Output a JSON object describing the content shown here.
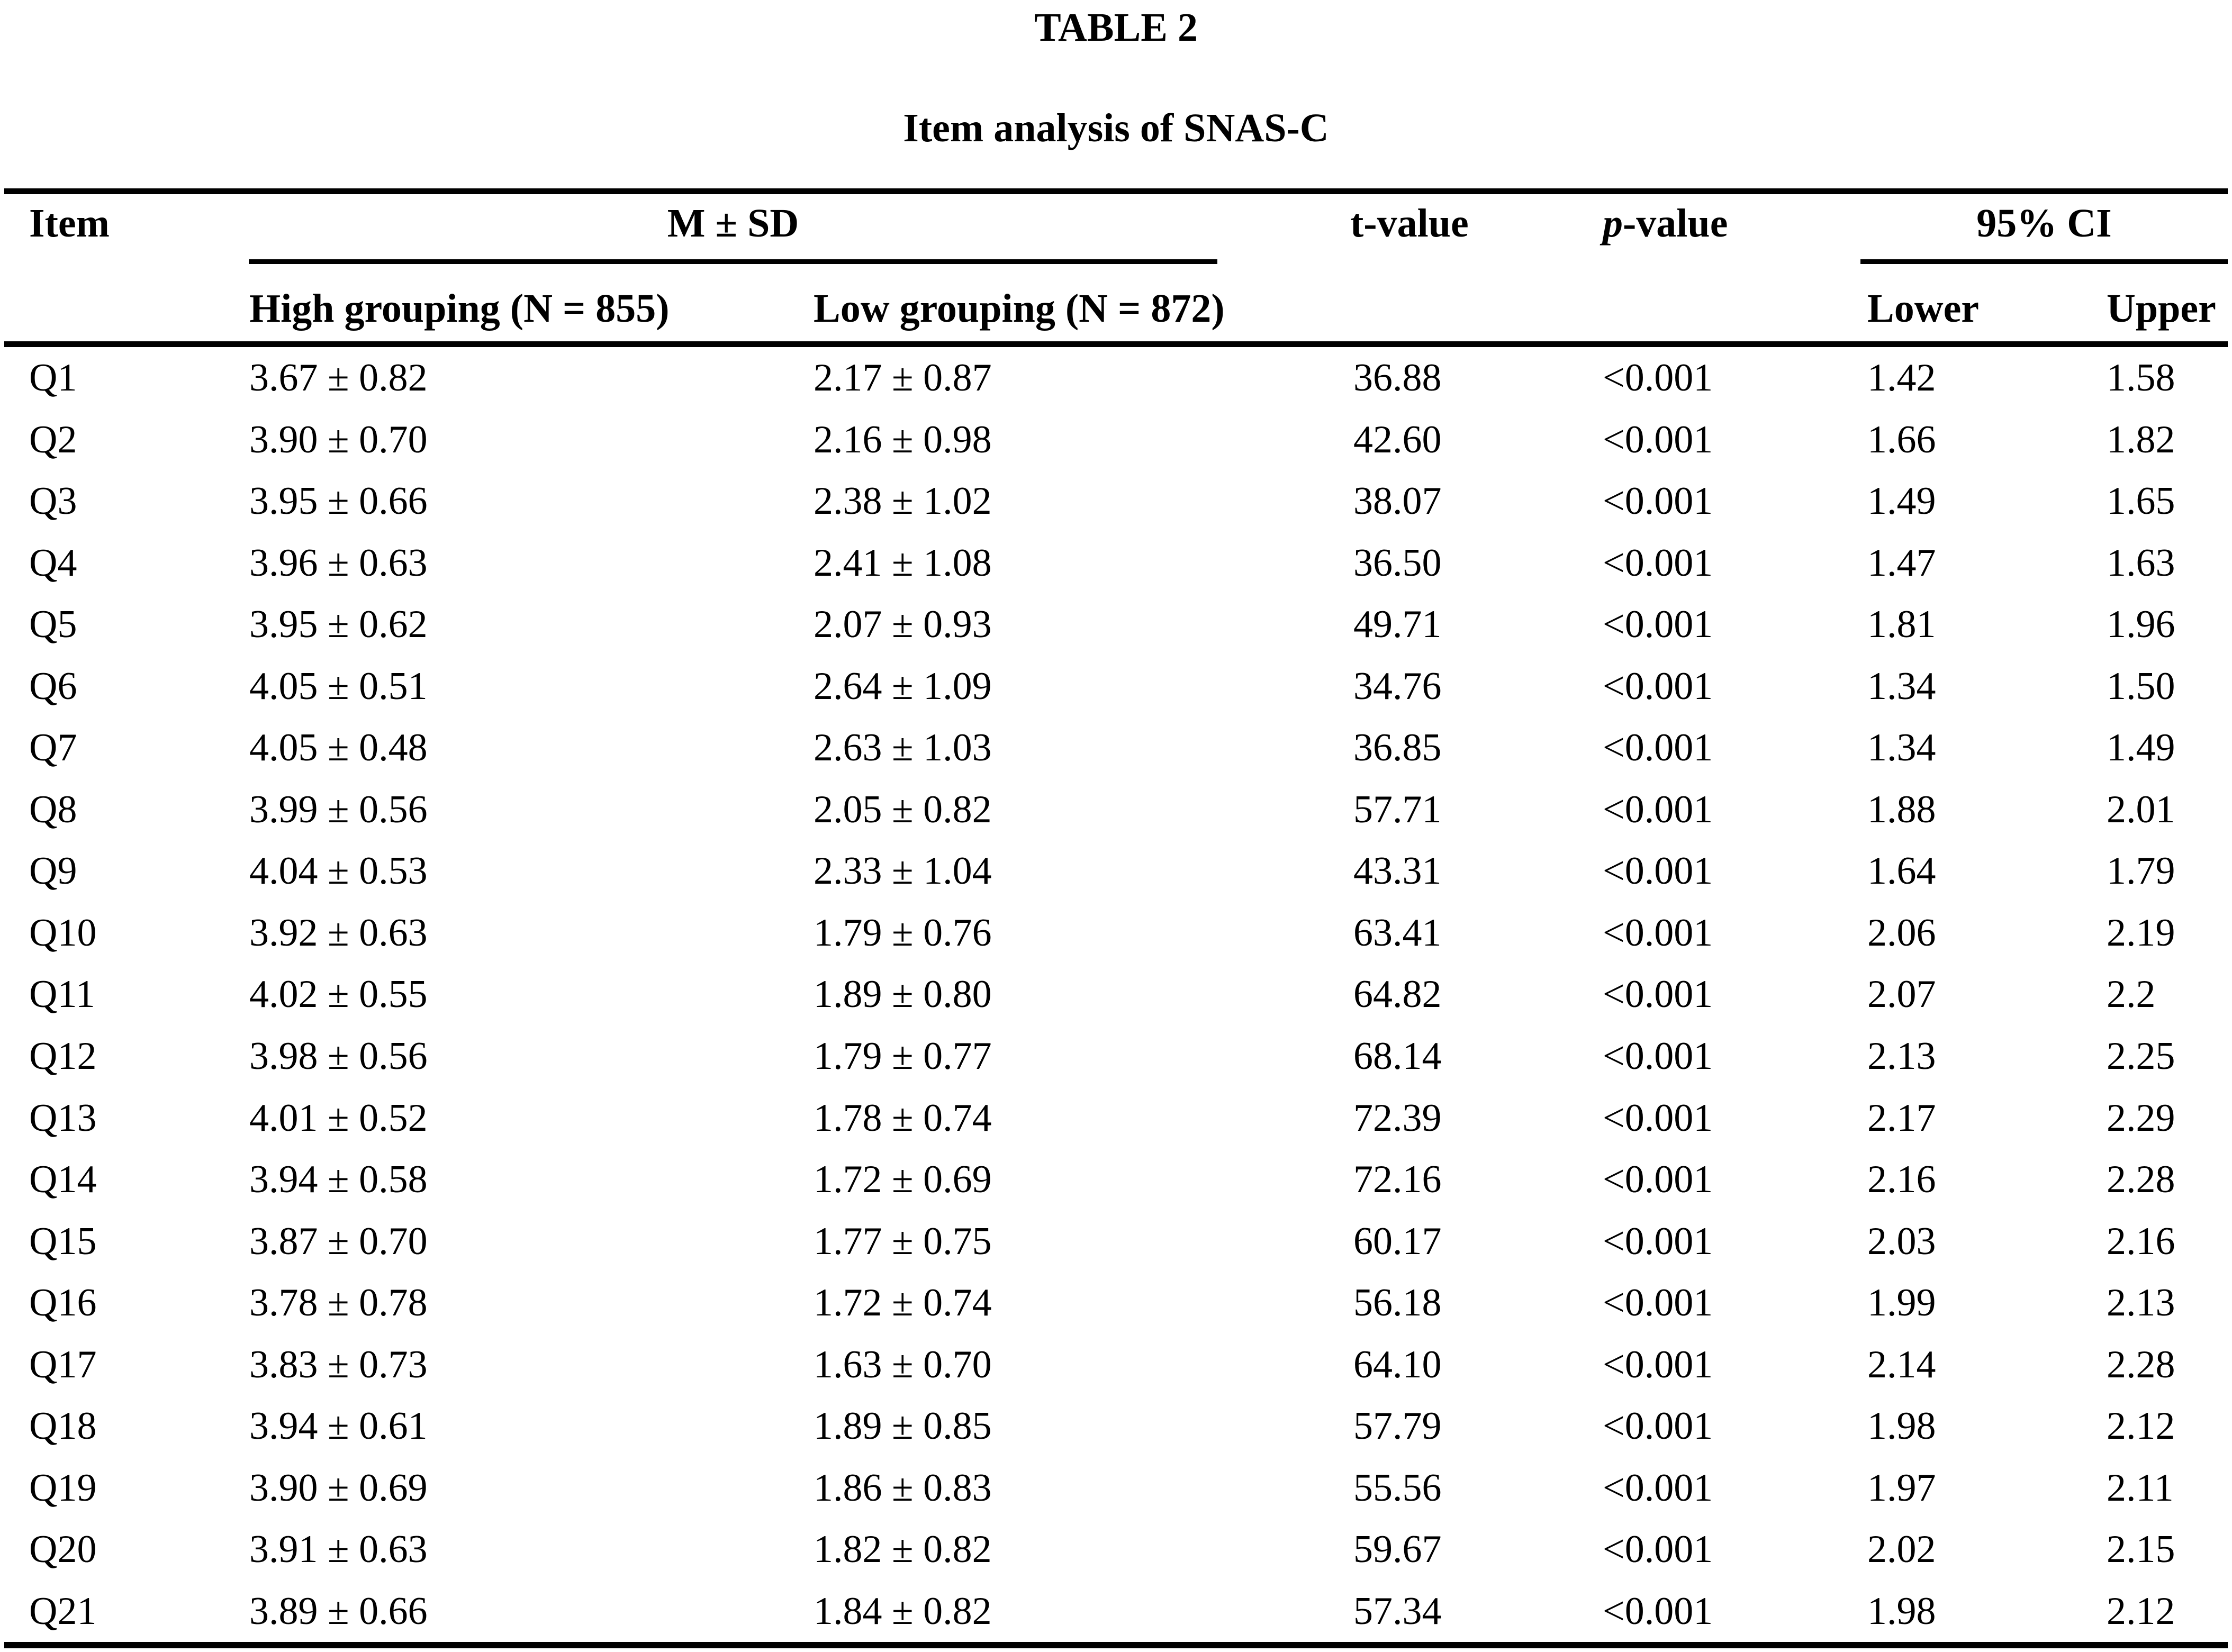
{
  "title": "TABLE 2",
  "subtitle": "Item analysis of SNAS-C",
  "colors": {
    "text": "#000000",
    "background": "#ffffff",
    "rule": "#000000"
  },
  "table": {
    "col_headers": {
      "item": "Item",
      "m_sd": "M ± SD",
      "t_value": "t-value",
      "p_value_italic": "p",
      "p_value_rest": "-value",
      "ci": "95% CI",
      "high_grouping": "High grouping (N = 855)",
      "low_grouping": "Low grouping (N = 872)",
      "lower": "Lower",
      "upper": "Upper"
    },
    "rows": [
      {
        "item": "Q1",
        "high": "3.67 ± 0.82",
        "low": "2.17 ± 0.87",
        "t": "36.88",
        "p": "<0.001",
        "lower": "1.42",
        "upper": "1.58"
      },
      {
        "item": "Q2",
        "high": "3.90 ± 0.70",
        "low": "2.16 ± 0.98",
        "t": "42.60",
        "p": "<0.001",
        "lower": "1.66",
        "upper": "1.82"
      },
      {
        "item": "Q3",
        "high": "3.95 ± 0.66",
        "low": "2.38 ± 1.02",
        "t": "38.07",
        "p": "<0.001",
        "lower": "1.49",
        "upper": "1.65"
      },
      {
        "item": "Q4",
        "high": "3.96 ± 0.63",
        "low": "2.41 ± 1.08",
        "t": "36.50",
        "p": "<0.001",
        "lower": "1.47",
        "upper": "1.63"
      },
      {
        "item": "Q5",
        "high": "3.95 ± 0.62",
        "low": "2.07 ± 0.93",
        "t": "49.71",
        "p": "<0.001",
        "lower": "1.81",
        "upper": "1.96"
      },
      {
        "item": "Q6",
        "high": "4.05 ± 0.51",
        "low": "2.64 ± 1.09",
        "t": "34.76",
        "p": "<0.001",
        "lower": "1.34",
        "upper": "1.50"
      },
      {
        "item": "Q7",
        "high": "4.05 ± 0.48",
        "low": "2.63 ± 1.03",
        "t": "36.85",
        "p": "<0.001",
        "lower": "1.34",
        "upper": "1.49"
      },
      {
        "item": "Q8",
        "high": "3.99 ± 0.56",
        "low": "2.05 ± 0.82",
        "t": "57.71",
        "p": "<0.001",
        "lower": "1.88",
        "upper": "2.01"
      },
      {
        "item": "Q9",
        "high": "4.04 ± 0.53",
        "low": "2.33 ± 1.04",
        "t": "43.31",
        "p": "<0.001",
        "lower": "1.64",
        "upper": "1.79"
      },
      {
        "item": "Q10",
        "high": "3.92 ± 0.63",
        "low": "1.79 ± 0.76",
        "t": "63.41",
        "p": "<0.001",
        "lower": "2.06",
        "upper": "2.19"
      },
      {
        "item": "Q11",
        "high": "4.02 ± 0.55",
        "low": "1.89 ± 0.80",
        "t": "64.82",
        "p": "<0.001",
        "lower": "2.07",
        "upper": "2.2"
      },
      {
        "item": "Q12",
        "high": "3.98 ± 0.56",
        "low": "1.79 ± 0.77",
        "t": "68.14",
        "p": "<0.001",
        "lower": "2.13",
        "upper": "2.25"
      },
      {
        "item": "Q13",
        "high": "4.01 ± 0.52",
        "low": "1.78 ± 0.74",
        "t": "72.39",
        "p": "<0.001",
        "lower": "2.17",
        "upper": "2.29"
      },
      {
        "item": "Q14",
        "high": "3.94 ± 0.58",
        "low": "1.72 ± 0.69",
        "t": "72.16",
        "p": "<0.001",
        "lower": "2.16",
        "upper": "2.28"
      },
      {
        "item": "Q15",
        "high": "3.87 ± 0.70",
        "low": "1.77 ± 0.75",
        "t": "60.17",
        "p": "<0.001",
        "lower": "2.03",
        "upper": "2.16"
      },
      {
        "item": "Q16",
        "high": "3.78 ± 0.78",
        "low": "1.72 ± 0.74",
        "t": "56.18",
        "p": "<0.001",
        "lower": "1.99",
        "upper": "2.13"
      },
      {
        "item": "Q17",
        "high": "3.83 ± 0.73",
        "low": "1.63 ± 0.70",
        "t": "64.10",
        "p": "<0.001",
        "lower": "2.14",
        "upper": "2.28"
      },
      {
        "item": "Q18",
        "high": "3.94 ± 0.61",
        "low": "1.89 ± 0.85",
        "t": "57.79",
        "p": "<0.001",
        "lower": "1.98",
        "upper": "2.12"
      },
      {
        "item": "Q19",
        "high": "3.90 ± 0.69",
        "low": "1.86 ± 0.83",
        "t": "55.56",
        "p": "<0.001",
        "lower": "1.97",
        "upper": "2.11"
      },
      {
        "item": "Q20",
        "high": "3.91 ± 0.63",
        "low": "1.82 ± 0.82",
        "t": "59.67",
        "p": "<0.001",
        "lower": "2.02",
        "upper": "2.15"
      },
      {
        "item": "Q21",
        "high": "3.89 ± 0.66",
        "low": "1.84 ± 0.82",
        "t": "57.34",
        "p": "<0.001",
        "lower": "1.98",
        "upper": "2.12"
      }
    ]
  }
}
